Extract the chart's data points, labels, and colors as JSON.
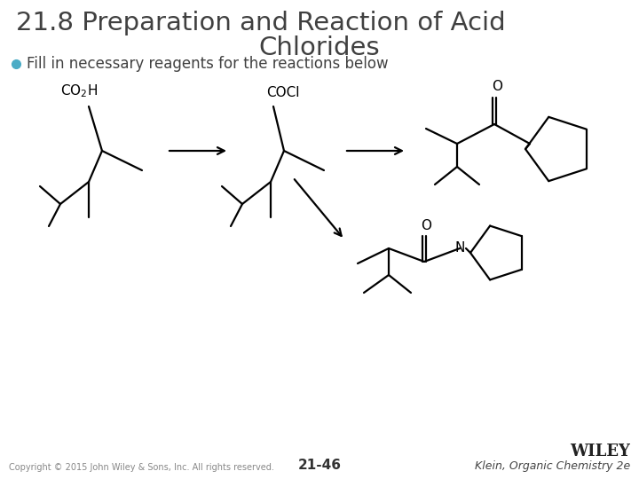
{
  "title_line1": "21.8 Preparation and Reaction of Acid",
  "title_line2": "Chlorides",
  "bullet": "Fill in necessary reagents for the reactions below",
  "bullet_color": "#4BACC6",
  "title_color": "#404040",
  "bullet_text_color": "#404040",
  "page_number": "21-46",
  "copyright": "Copyright © 2015 John Wiley & Sons, Inc. All rights reserved.",
  "wiley": "WILEY",
  "klein": "Klein, Organic Chemistry 2e",
  "bg_color": "#FFFFFF"
}
